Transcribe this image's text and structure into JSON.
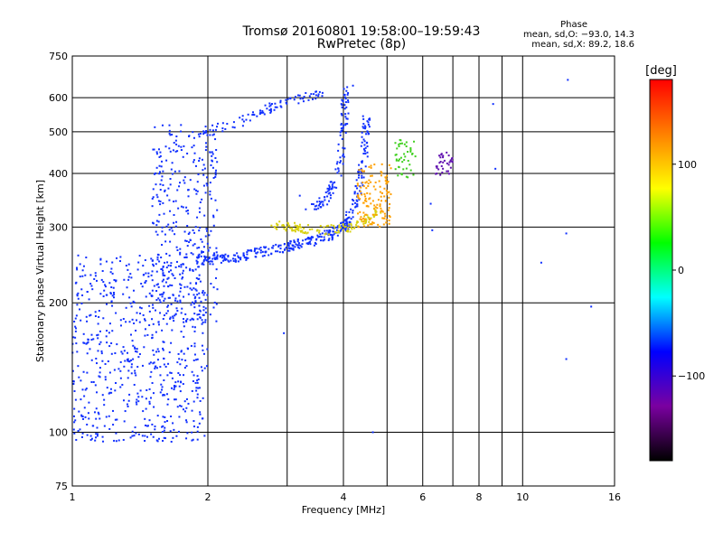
{
  "header": {
    "title_line1": "Tromsø 20160801 19:58:00–19:59:43",
    "title_line2": "RwPretec (8p)",
    "phase_title": "Phase",
    "phase_o": "mean, sd,O: −93.0, 14.3",
    "phase_x": "mean, sd,X:  89.2, 18.6"
  },
  "chart_data": {
    "type": "scatter",
    "xlabel": "Frequency [MHz]",
    "ylabel": "Stationary phase Virtual Height [km]",
    "x_scale": "log",
    "y_scale": "log",
    "xlim": [
      1,
      16
    ],
    "ylim": [
      75,
      750
    ],
    "x_ticks": [
      1,
      2,
      4,
      6,
      8,
      10,
      16
    ],
    "x_tick_labels": [
      "1",
      "2",
      "4",
      "6",
      "8",
      "10",
      "16"
    ],
    "x_minor_gridlines": [
      3,
      5,
      7,
      9
    ],
    "y_ticks": [
      75,
      100,
      200,
      300,
      400,
      500,
      600,
      750
    ],
    "y_tick_labels": [
      "75",
      "100",
      "200",
      "300",
      "400",
      "500",
      "600",
      "750"
    ],
    "grid": true,
    "colorbar": {
      "label": "[deg]",
      "range": [
        -180,
        180
      ],
      "ticks": [
        100,
        0,
        -100
      ],
      "tick_labels": [
        "100",
        "0",
        "−100"
      ],
      "colors": [
        "#000000",
        "#7a00a0",
        "#0000ff",
        "#00ffff",
        "#00ff00",
        "#ffff00",
        "#ff8000",
        "#ff0000"
      ]
    },
    "traces": [
      {
        "name": "",
        "color": "#1030ff",
        "kind": "cloud",
        "x_range": [
          1.0,
          2.0
        ],
        "y_range": [
          95,
          260
        ],
        "count": 650
      },
      {
        "name": "",
        "color": "#1030ff",
        "kind": "cloud",
        "x_range": [
          1.5,
          2.1
        ],
        "y_range": [
          180,
          520
        ],
        "count": 350
      },
      {
        "name": "",
        "color": "#1030ff",
        "kind": "curve",
        "points": [
          [
            1.9,
            250
          ],
          [
            2.3,
            255
          ],
          [
            2.6,
            262
          ],
          [
            3.0,
            270
          ],
          [
            3.4,
            278
          ],
          [
            3.8,
            290
          ],
          [
            4.1,
            305
          ]
        ],
        "count": 260
      },
      {
        "name": "",
        "color": "#1030ff",
        "kind": "curve",
        "points": [
          [
            1.95,
            500
          ],
          [
            2.3,
            520
          ],
          [
            2.6,
            555
          ],
          [
            2.9,
            585
          ],
          [
            3.3,
            600
          ],
          [
            3.6,
            610
          ]
        ],
        "count": 90
      },
      {
        "name": "",
        "color": "#1030ff",
        "kind": "curve",
        "points": [
          [
            3.4,
            330
          ],
          [
            3.7,
            350
          ],
          [
            3.9,
            400
          ],
          [
            4.0,
            500
          ],
          [
            4.05,
            640
          ]
        ],
        "count": 110
      },
      {
        "name": "",
        "color": "#1030ff",
        "kind": "curve",
        "points": [
          [
            4.0,
            300
          ],
          [
            4.2,
            330
          ],
          [
            4.35,
            380
          ],
          [
            4.45,
            450
          ],
          [
            4.5,
            540
          ]
        ],
        "count": 110
      },
      {
        "name": "",
        "color": "#d8d010",
        "kind": "curve",
        "points": [
          [
            2.8,
            305
          ],
          [
            3.1,
            300
          ],
          [
            3.4,
            295
          ],
          [
            3.8,
            296
          ],
          [
            4.1,
            300
          ],
          [
            4.5,
            310
          ],
          [
            4.8,
            330
          ]
        ],
        "count": 130
      },
      {
        "name": "",
        "color": "#ffa000",
        "kind": "cloud",
        "x_range": [
          4.3,
          5.1
        ],
        "y_range": [
          300,
          420
        ],
        "count": 130
      },
      {
        "name": "",
        "color": "#40d020",
        "kind": "cloud",
        "x_range": [
          5.2,
          5.8
        ],
        "y_range": [
          390,
          480
        ],
        "count": 45
      },
      {
        "name": "",
        "color": "#6010b0",
        "kind": "cloud",
        "x_range": [
          6.4,
          7.0
        ],
        "y_range": [
          395,
          450
        ],
        "count": 35
      },
      {
        "name": "",
        "color": "#1030ff",
        "kind": "points",
        "points": [
          [
            1.02,
            96
          ],
          [
            1.1,
            96
          ],
          [
            1.3,
            96
          ],
          [
            1.6,
            97
          ],
          [
            3.2,
            355
          ],
          [
            3.3,
            330
          ],
          [
            2.95,
            170
          ],
          [
            6.3,
            295
          ],
          [
            6.25,
            340
          ],
          [
            8.6,
            580
          ],
          [
            8.7,
            410
          ],
          [
            11.0,
            248
          ],
          [
            12.5,
            290
          ],
          [
            12.5,
            148
          ],
          [
            14.2,
            196
          ],
          [
            12.6,
            660
          ],
          [
            4.65,
            100
          ],
          [
            4.2,
            640
          ],
          [
            3.9,
            410
          ]
        ]
      }
    ]
  }
}
